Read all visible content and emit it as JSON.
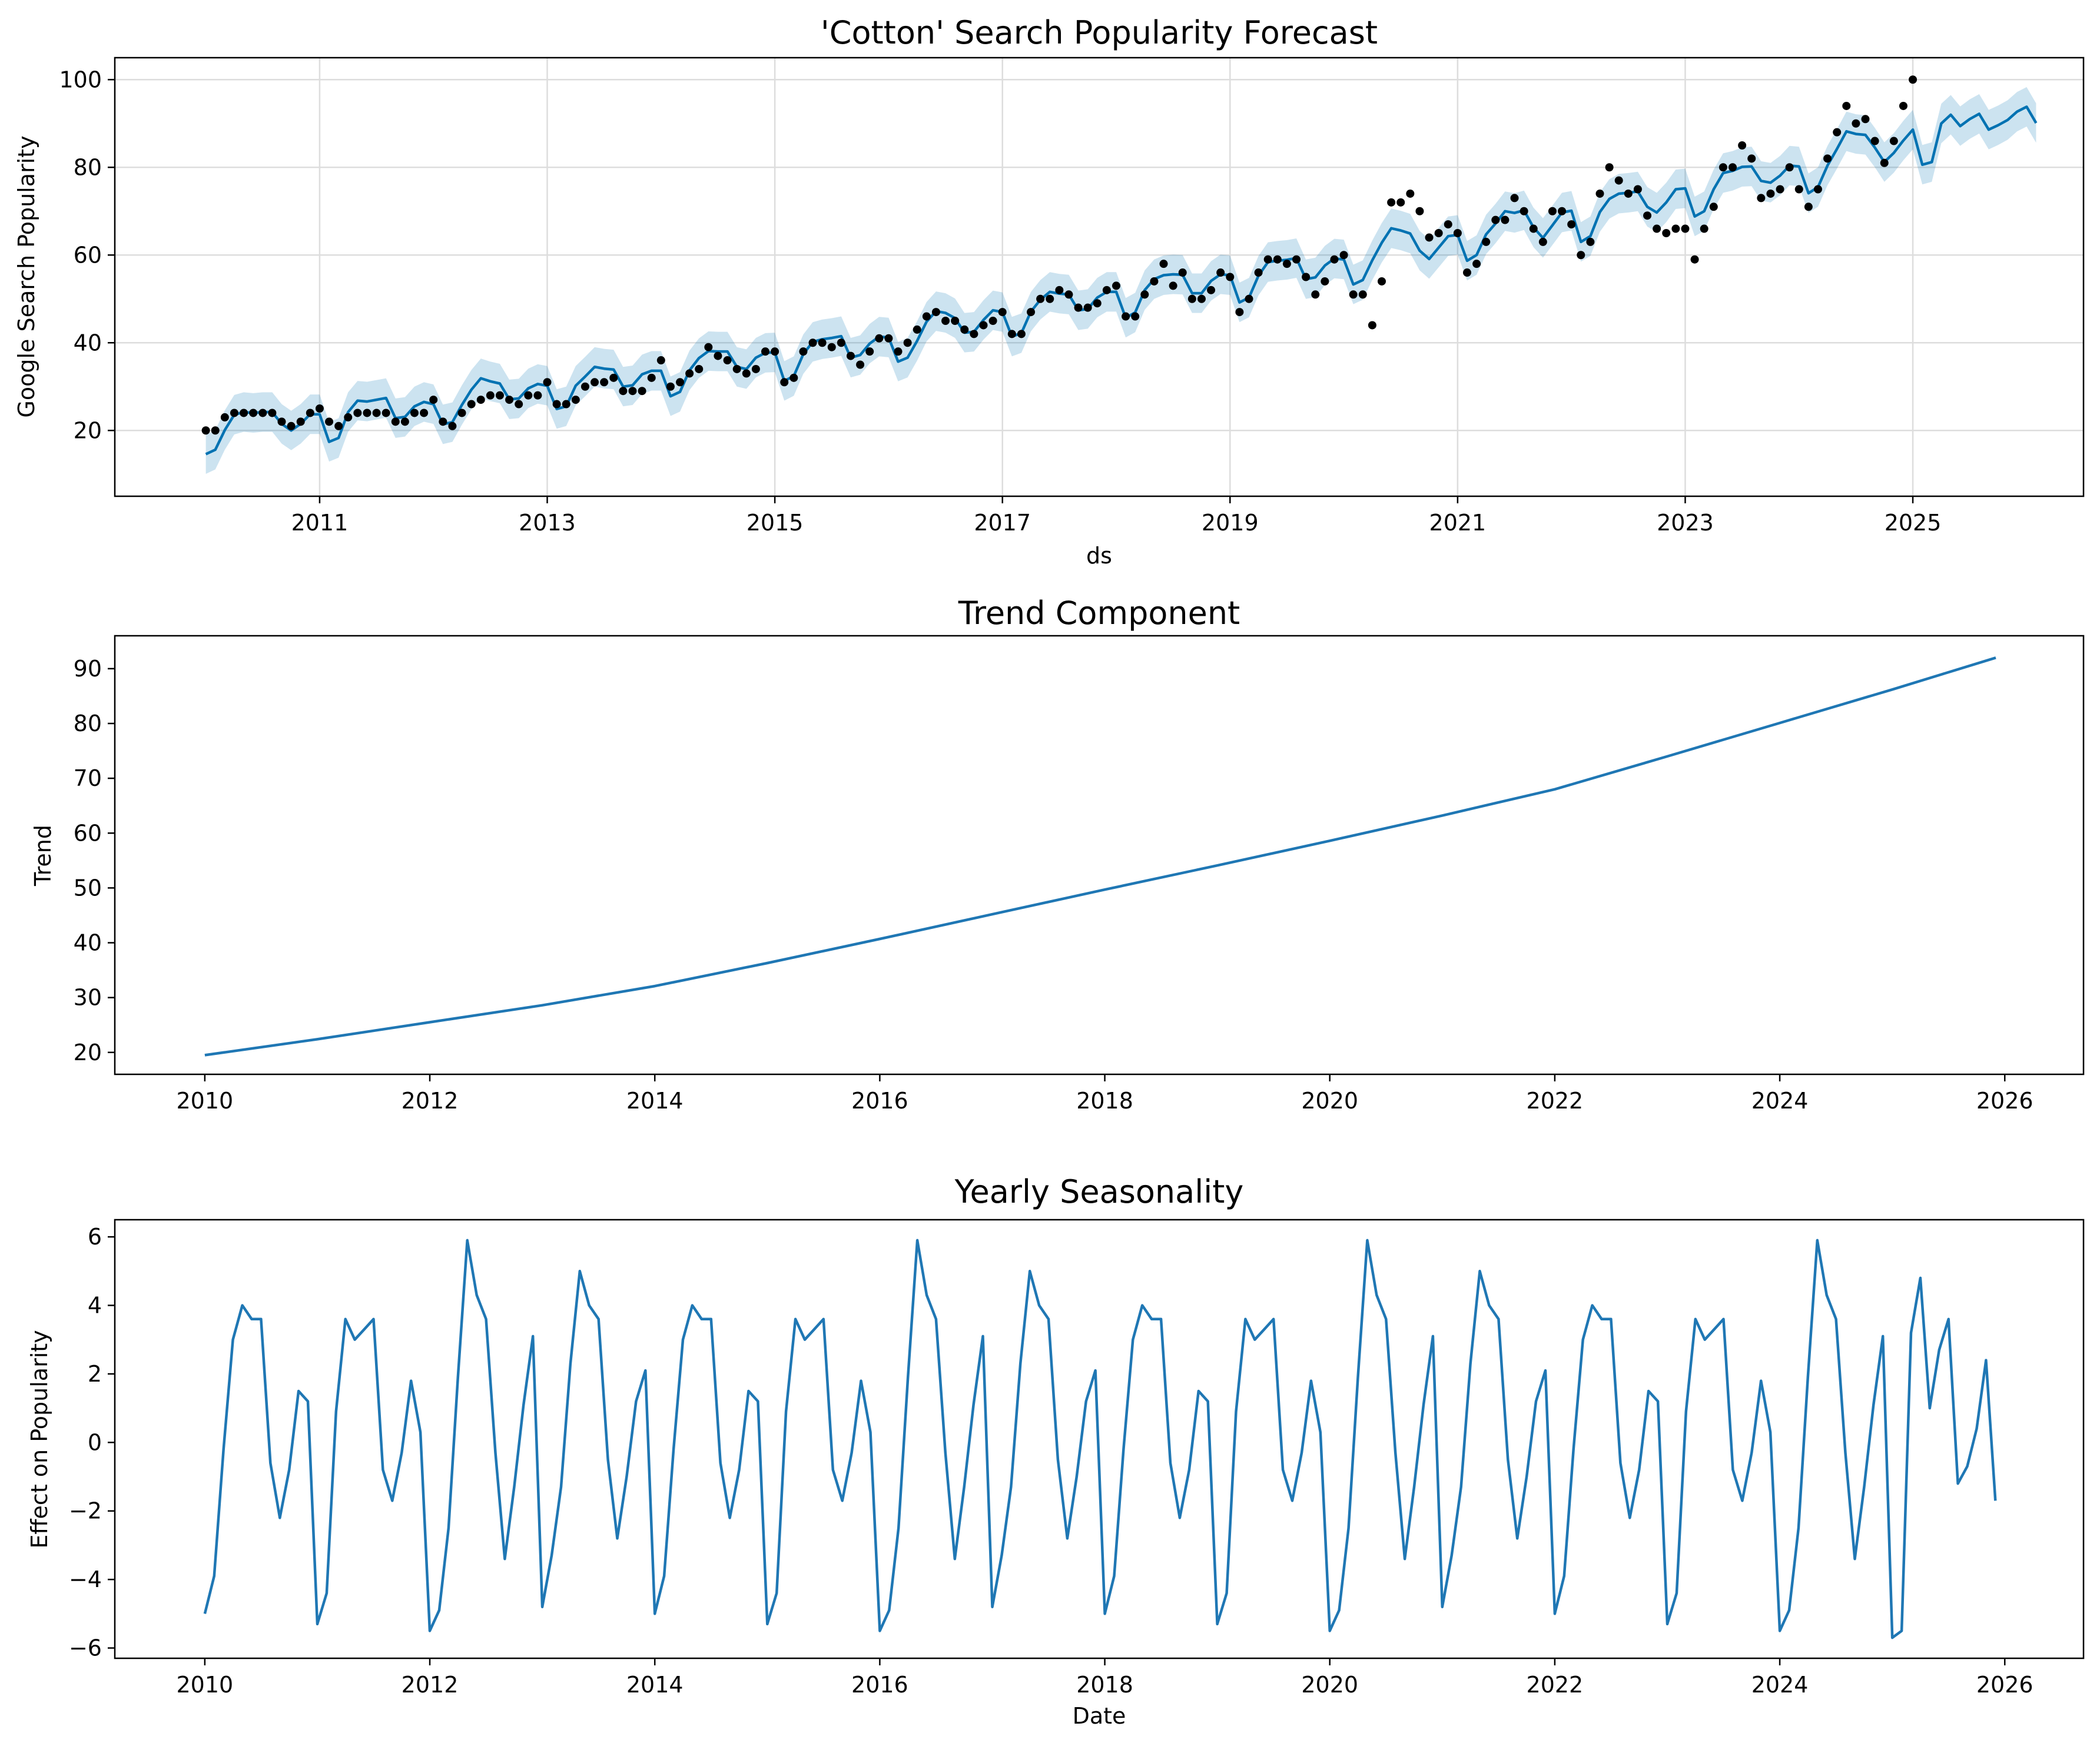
{
  "chart_data": [
    {
      "type": "line",
      "title": "'Cotton' Search Popularity Forecast",
      "xlabel": "ds",
      "ylabel": "Google Search Popularity",
      "xlim": [
        2009.2,
        2026.5
      ],
      "ylim": [
        5,
        105
      ],
      "x_ticks": [
        "2011",
        "2013",
        "2015",
        "2017",
        "2019",
        "2021",
        "2023",
        "2025"
      ],
      "y_ticks": [
        "20",
        "40",
        "60",
        "80",
        "100"
      ],
      "grid": true,
      "series": [
        {
          "role": "forecast-line",
          "color": "#0072B2",
          "start_year": 2010,
          "step": "monthly",
          "values": [
            14.6,
            15.6,
            20.1,
            23.6,
            24.2,
            24.0,
            24.2,
            24.2,
            21.5,
            20.0,
            21.5,
            23.7,
            23.7,
            17.4,
            18.3,
            24.2,
            26.8,
            26.6,
            27.0,
            27.4,
            22.8,
            23.1,
            25.5,
            26.5,
            26.0,
            21.4,
            21.9,
            25.8,
            29.3,
            31.9,
            31.2,
            30.7,
            27.1,
            27.3,
            29.6,
            30.6,
            30.2,
            24.9,
            25.5,
            30.2,
            32.3,
            34.5,
            34.1,
            33.9,
            30.0,
            30.3,
            32.8,
            33.6,
            33.6,
            27.8,
            28.8,
            33.7,
            36.5,
            38.1,
            38.0,
            38.0,
            34.5,
            34.0,
            36.6,
            37.7,
            37.8,
            31.3,
            32.4,
            37.4,
            40.2,
            40.8,
            41.1,
            41.5,
            36.6,
            37.2,
            39.8,
            41.4,
            41.2,
            35.7,
            36.6,
            40.4,
            44.8,
            47.2,
            46.8,
            45.6,
            42.3,
            42.5,
            45.2,
            47.4,
            47.0,
            41.4,
            42.2,
            47.1,
            49.8,
            51.6,
            51.2,
            51.0,
            47.4,
            47.7,
            50.3,
            51.6,
            51.6,
            45.7,
            46.9,
            52.0,
            54.5,
            55.4,
            55.6,
            55.5,
            51.3,
            51.3,
            54.1,
            55.6,
            55.4,
            49.2,
            50.3,
            55.3,
            58.4,
            58.7,
            58.9,
            59.3,
            54.5,
            54.9,
            57.6,
            59.2,
            59.0,
            53.3,
            54.3,
            58.8,
            62.8,
            66.1,
            65.6,
            64.9,
            61.0,
            59.1,
            61.7,
            64.3,
            64.6,
            58.7,
            60.0,
            64.7,
            67.2,
            70.0,
            69.6,
            70.2,
            66.3,
            63.9,
            66.8,
            69.7,
            70.1,
            63.0,
            64.3,
            69.8,
            72.8,
            74.0,
            74.2,
            74.5,
            71.0,
            69.7,
            72.0,
            75.0,
            75.2,
            68.8,
            70.0,
            75.0,
            78.7,
            79.2,
            80.1,
            80.2,
            76.9,
            76.5,
            78.1,
            80.4,
            80.2,
            74.1,
            75.5,
            80.4,
            84.2,
            88.2,
            87.6,
            87.4,
            84.5,
            81.2,
            83.3,
            86.1,
            88.6,
            80.6,
            81.2,
            90.0,
            92.0,
            89.4,
            91.0,
            92.2,
            88.6,
            89.6,
            90.8,
            92.7,
            93.8,
            90.1
          ]
        },
        {
          "role": "observed-points",
          "color": "#000000",
          "start_year": 2010,
          "step": "monthly",
          "values": [
            20,
            20,
            23,
            24,
            24,
            24,
            24,
            24,
            22,
            21,
            22,
            24,
            25,
            22,
            21,
            23,
            24,
            24,
            24,
            24,
            22,
            22,
            24,
            24,
            27,
            22,
            21,
            24,
            26,
            27,
            28,
            28,
            27,
            26,
            28,
            28,
            31,
            26,
            26,
            27,
            30,
            31,
            31,
            32,
            29,
            29,
            29,
            32,
            36,
            30,
            31,
            33,
            34,
            39,
            37,
            36,
            34,
            33,
            34,
            38,
            38,
            31,
            32,
            38,
            40,
            40,
            39,
            40,
            37,
            35,
            38,
            41,
            41,
            38,
            40,
            43,
            46,
            47,
            45,
            45,
            43,
            42,
            44,
            45,
            47,
            42,
            42,
            47,
            50,
            50,
            52,
            51,
            48,
            48,
            49,
            52,
            53,
            46,
            46,
            51,
            54,
            58,
            53,
            56,
            50,
            50,
            52,
            56,
            55,
            47,
            50,
            56,
            59,
            59,
            58,
            59,
            55,
            51,
            54,
            59,
            60,
            51,
            51,
            44,
            54,
            72,
            72,
            74,
            70,
            64,
            65,
            67,
            65,
            56,
            58,
            63,
            68,
            68,
            73,
            70,
            66,
            63,
            70,
            70,
            67,
            60,
            63,
            74,
            80,
            77,
            74,
            75,
            69,
            66,
            65,
            66,
            66,
            59,
            66,
            71,
            80,
            80,
            85,
            82,
            73,
            74,
            75,
            80,
            75,
            71,
            75,
            82,
            88,
            94,
            90,
            91,
            86,
            81,
            86,
            94,
            100
          ]
        }
      ],
      "uncertainty_band": {
        "color": "#0072B2",
        "half_width": 4.5
      }
    },
    {
      "type": "line",
      "title": "Trend Component",
      "xlabel": "",
      "ylabel": "Trend",
      "xlim": [
        2009.2,
        2026.7
      ],
      "ylim": [
        16,
        96
      ],
      "x_ticks": [
        "2010",
        "2012",
        "2014",
        "2016",
        "2018",
        "2020",
        "2022",
        "2024",
        "2026"
      ],
      "y_ticks": [
        "20",
        "30",
        "40",
        "50",
        "60",
        "70",
        "80",
        "90"
      ],
      "grid": false,
      "series": [
        {
          "color": "#1f77b4",
          "x": [
            2010,
            2011,
            2012,
            2013,
            2014,
            2015,
            2016,
            2017,
            2018,
            2019,
            2020,
            2021,
            2022,
            2023,
            2024,
            2025,
            2025.92
          ],
          "y": [
            19.5,
            22.4,
            25.5,
            28.6,
            32.1,
            36.3,
            40.7,
            45.2,
            49.7,
            54.1,
            58.6,
            63.2,
            68.0,
            74.0,
            80.1,
            86.2,
            92.0
          ]
        }
      ]
    },
    {
      "type": "line",
      "title": "Yearly Seasonality",
      "xlabel": "Date",
      "ylabel": "Effect on Popularity",
      "xlim": [
        2009.2,
        2026.7
      ],
      "ylim": [
        -6.3,
        6.5
      ],
      "x_ticks": [
        "2010",
        "2012",
        "2014",
        "2016",
        "2018",
        "2020",
        "2022",
        "2024",
        "2026"
      ],
      "y_ticks": [
        "6",
        "4",
        "2",
        "0",
        "−2",
        "−4",
        "−6"
      ],
      "grid": false,
      "series": [
        {
          "color": "#1f77b4",
          "start_year": 2010,
          "step": "monthly",
          "values": [
            -5.0,
            -3.9,
            -0.2,
            3.0,
            4.0,
            3.6,
            3.6,
            -0.6,
            -2.2,
            -0.8,
            1.5,
            1.2,
            -5.3,
            -4.4,
            0.9,
            3.6,
            3.0,
            3.3,
            3.6,
            -0.8,
            -1.7,
            -0.3,
            1.8,
            0.3,
            -5.5,
            -4.9,
            -2.5,
            1.9,
            5.9,
            4.3,
            3.6,
            -0.3,
            -3.4,
            -1.3,
            1.1,
            3.1,
            -4.8,
            -3.3,
            -1.3,
            2.3,
            5.0,
            4.0,
            3.6,
            -0.5,
            -2.8,
            -1.0,
            1.2,
            2.1,
            -5.0,
            -3.9,
            -0.2,
            3.0,
            4.0,
            3.6,
            3.6,
            -0.6,
            -2.2,
            -0.8,
            1.5,
            1.2,
            -5.3,
            -4.4,
            0.9,
            3.6,
            3.0,
            3.3,
            3.6,
            -0.8,
            -1.7,
            -0.3,
            1.8,
            0.3,
            -5.5,
            -4.9,
            -2.5,
            1.9,
            5.9,
            4.3,
            3.6,
            -0.3,
            -3.4,
            -1.3,
            1.1,
            3.1,
            -4.8,
            -3.3,
            -1.3,
            2.3,
            5.0,
            4.0,
            3.6,
            -0.5,
            -2.8,
            -1.0,
            1.2,
            2.1,
            -5.0,
            -3.9,
            -0.2,
            3.0,
            4.0,
            3.6,
            3.6,
            -0.6,
            -2.2,
            -0.8,
            1.5,
            1.2,
            -5.3,
            -4.4,
            0.9,
            3.6,
            3.0,
            3.3,
            3.6,
            -0.8,
            -1.7,
            -0.3,
            1.8,
            0.3,
            -5.5,
            -4.9,
            -2.5,
            1.9,
            5.9,
            4.3,
            3.6,
            -0.3,
            -3.4,
            -1.3,
            1.1,
            3.1,
            -4.8,
            -3.3,
            -1.3,
            2.3,
            5.0,
            4.0,
            3.6,
            -0.5,
            -2.8,
            -1.0,
            1.2,
            2.1,
            -5.0,
            -3.9,
            -0.2,
            3.0,
            4.0,
            3.6,
            3.6,
            -0.6,
            -2.2,
            -0.8,
            1.5,
            1.2,
            -5.3,
            -4.4,
            0.9,
            3.6,
            3.0,
            3.3,
            3.6,
            -0.8,
            -1.7,
            -0.3,
            1.8,
            0.3,
            -5.5,
            -4.9,
            -2.5,
            1.9,
            5.9,
            4.3,
            3.6,
            -0.3,
            -3.4,
            -1.3,
            1.1,
            3.1,
            -5.7,
            -5.5,
            3.2,
            4.8,
            1.0,
            2.7,
            3.6,
            -1.2,
            -0.7,
            0.4,
            2.4,
            -1.7
          ]
        }
      ]
    }
  ]
}
